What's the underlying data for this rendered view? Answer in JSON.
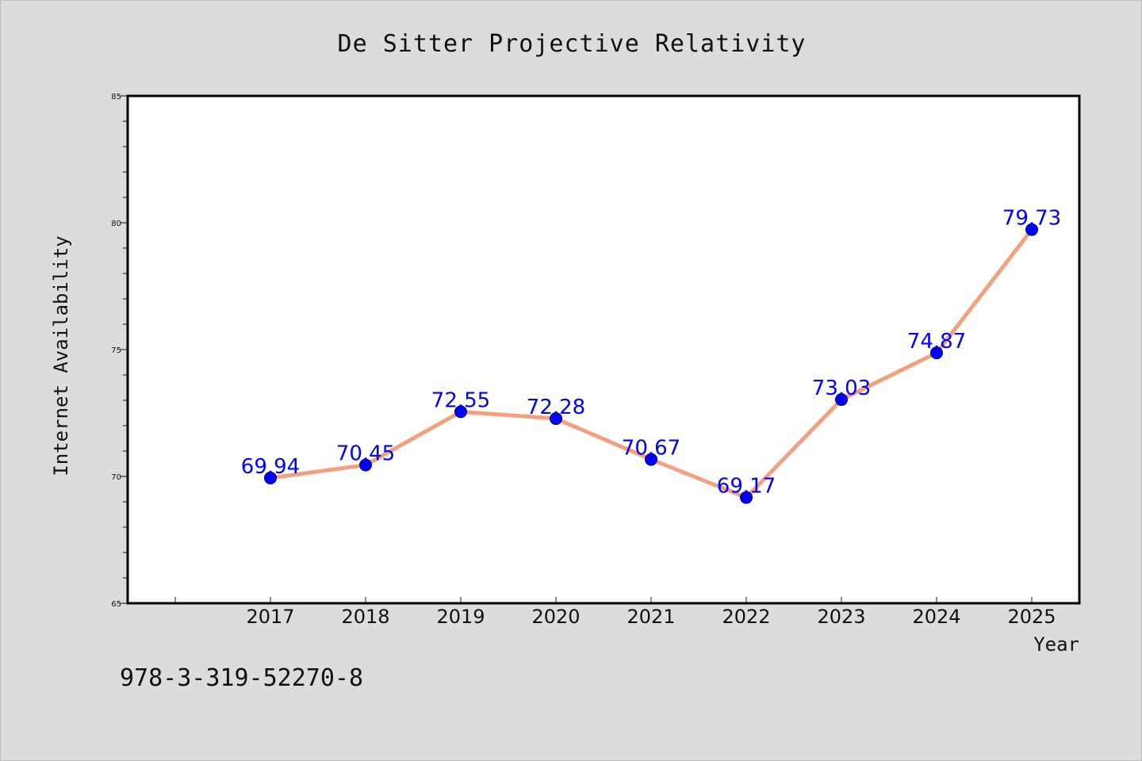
{
  "chart_data": {
    "type": "line",
    "title": "De Sitter Projective Relativity",
    "xlabel": "Year",
    "ylabel": "Internet Availability",
    "x": [
      "2017",
      "2018",
      "2019",
      "2020",
      "2021",
      "2022",
      "2023",
      "2024",
      "2025"
    ],
    "series": [
      {
        "values": [
          69.94,
          70.45,
          72.55,
          72.28,
          70.67,
          69.17,
          73.03,
          74.87,
          79.73
        ],
        "data_labels": [
          "69.94",
          "70.45",
          "72.55",
          "72.28",
          "70.67",
          "69.17",
          "73.03",
          "74.87",
          "79.73"
        ]
      }
    ],
    "ylim": [
      65,
      85
    ],
    "yticks": [
      "65",
      "70",
      "75",
      "80",
      "85"
    ],
    "grid": false,
    "line_color": "#f4a07e",
    "marker_color": "#0000ff",
    "label_color": "#0000ff"
  },
  "footer": {
    "text": "978-3-319-52270-8"
  }
}
